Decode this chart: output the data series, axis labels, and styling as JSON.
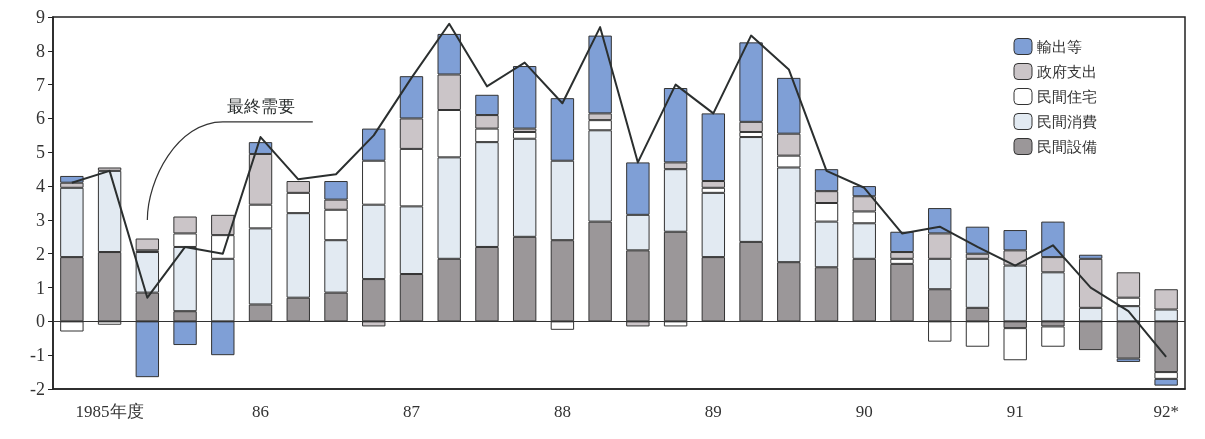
{
  "chart_data": {
    "type": "bar",
    "stacked": true,
    "categories": [
      null,
      "1985年度",
      null,
      null,
      null,
      "86",
      null,
      null,
      null,
      "87",
      null,
      null,
      null,
      "88",
      null,
      null,
      null,
      "89",
      null,
      null,
      null,
      "90",
      null,
      null,
      null,
      "91",
      null,
      null,
      null,
      "92*"
    ],
    "series": [
      {
        "name": "民間設備",
        "color": "#9b9799",
        "values": [
          1.9,
          2.05,
          0.85,
          0.3,
          null,
          0.5,
          0.7,
          0.85,
          1.25,
          1.4,
          1.85,
          2.2,
          2.5,
          2.4,
          2.95,
          2.1,
          2.65,
          1.9,
          2.35,
          1.75,
          1.6,
          1.85,
          1.7,
          0.95,
          0.4,
          -0.2,
          -0.15,
          -0.85,
          -1.1,
          -1.5
        ]
      },
      {
        "name": "民間消費",
        "color": "#e2eaf2",
        "values": [
          2.05,
          2.4,
          1.2,
          1.9,
          1.85,
          2.25,
          2.5,
          1.55,
          2.2,
          2.0,
          3.0,
          3.1,
          2.9,
          2.35,
          2.7,
          1.05,
          1.85,
          1.9,
          3.1,
          2.8,
          1.35,
          1.05,
          null,
          0.9,
          1.45,
          1.65,
          1.45,
          0.4,
          0.45,
          0.35
        ]
      },
      {
        "name": "民間住宅",
        "color": "#ffffff",
        "values": [
          -0.3,
          -0.1,
          0.05,
          0.4,
          0.7,
          0.7,
          0.6,
          0.9,
          1.3,
          1.7,
          1.4,
          0.4,
          0.2,
          -0.25,
          0.3,
          null,
          -0.15,
          0.15,
          0.15,
          0.35,
          0.55,
          0.35,
          0.15,
          -0.6,
          -0.75,
          -0.95,
          -0.6,
          null,
          0.25,
          -0.2
        ]
      },
      {
        "name": "政府支出",
        "color": "#cbc5c8",
        "values": [
          0.15,
          0.1,
          0.35,
          0.5,
          0.6,
          1.5,
          0.35,
          0.3,
          -0.15,
          0.9,
          1.05,
          0.4,
          0.1,
          null,
          0.2,
          -0.15,
          0.2,
          0.2,
          0.3,
          0.65,
          0.35,
          0.45,
          0.2,
          0.75,
          0.15,
          0.45,
          0.45,
          1.45,
          0.75,
          0.6
        ]
      },
      {
        "name": "輸出等",
        "color": "#7f9fd6",
        "values": [
          0.2,
          null,
          -1.65,
          -0.7,
          -1.0,
          0.35,
          null,
          0.55,
          0.95,
          1.25,
          1.2,
          0.6,
          1.85,
          1.85,
          2.3,
          1.55,
          2.2,
          2.0,
          2.35,
          1.65,
          0.65,
          0.3,
          0.6,
          0.75,
          0.8,
          0.6,
          1.05,
          0.12,
          -0.1,
          -0.2
        ]
      },
      {
        "name": "最終需要",
        "type": "line",
        "color": "#2b2f2f",
        "values": [
          4.1,
          4.45,
          0.7,
          2.2,
          2.0,
          5.45,
          4.2,
          4.35,
          5.5,
          7.2,
          8.8,
          6.95,
          7.65,
          6.45,
          8.7,
          4.7,
          7.0,
          6.15,
          8.45,
          7.45,
          4.45,
          3.95,
          2.6,
          2.8,
          2.2,
          1.65,
          2.25,
          1.0,
          0.3,
          -1.05
        ]
      }
    ],
    "ylim": [
      -2,
      9
    ],
    "yticks": [
      -2,
      -1,
      0,
      1,
      2,
      3,
      4,
      5,
      6,
      7,
      8,
      9
    ],
    "ref_lines": [
      {
        "axis": "y",
        "value": 0
      }
    ],
    "legend": "top right"
  }
}
